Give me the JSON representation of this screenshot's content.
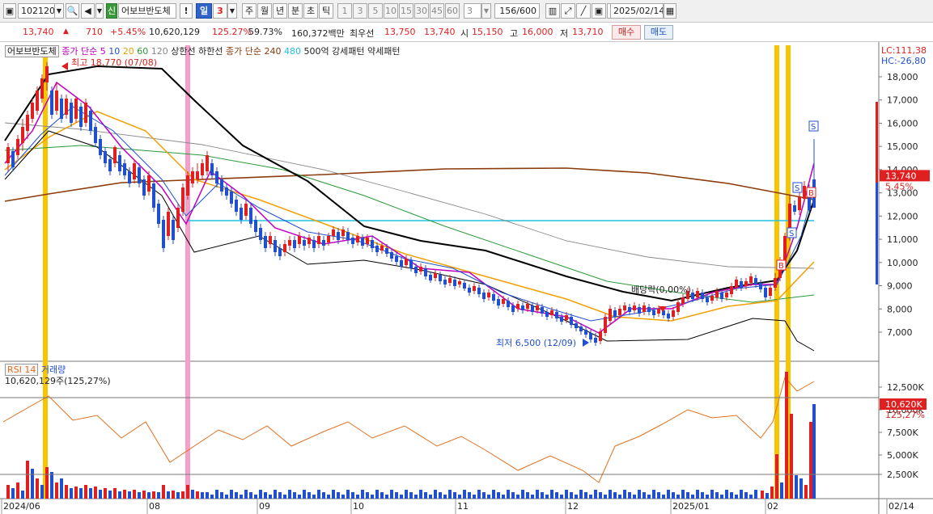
{
  "toolbar": {
    "code": "102120",
    "market_badge": "신",
    "stock_name": "어보브반도체",
    "period_active": "일",
    "period_count": "3",
    "periods": [
      "주",
      "월",
      "년",
      "분",
      "초",
      "틱"
    ],
    "minutes": [
      "1",
      "3",
      "5",
      "10",
      "15",
      "30",
      "45",
      "60"
    ],
    "minute_select": "3",
    "range": "156/600",
    "date": "2025/02/14"
  },
  "quote": {
    "price": "13,740",
    "change": "710",
    "change_rate": "+5.45%",
    "volume": "10,620,129",
    "volume_ratio": "125.27%",
    "turnover": "59.73%",
    "amount": "160,372백만",
    "best_label": "최우선",
    "best_ask": "13,750",
    "best_bid": "13,740",
    "open_label": "시",
    "open": "15,150",
    "high_label": "고",
    "high": "16,000",
    "low_label": "저",
    "low": "13,710",
    "buy_button": "매수",
    "sell_button": "매도"
  },
  "price_legend": {
    "name": "어보브반도체",
    "ma_label": "종가 단순",
    "ma_periods": [
      "5",
      "10",
      "20",
      "60",
      "120"
    ],
    "upper_limit": "상한선",
    "lower_limit": "하한선",
    "ma2_label": "종가 단순",
    "ma2_periods": [
      "240",
      "480"
    ],
    "pattern1": "500억 강세패턴",
    "pattern2": "약세패턴"
  },
  "indicator_legend": {
    "rsi": "RSI 14",
    "volume": "거래량",
    "volume_info": "10,620,129주(125,27%)"
  },
  "chart_data": {
    "type": "candlestick",
    "price_axis": [
      "18,000",
      "17,000",
      "16,000",
      "15,000",
      "14,000",
      "13,000",
      "12,000",
      "11,000",
      "10,000",
      "9,000",
      "8,000",
      "7,000"
    ],
    "price_ylim": [
      6000,
      19000
    ],
    "lc_label": "LC:111,38",
    "hc_label": "HC:-26,80",
    "current_price_label": "13,740",
    "current_rate_label": "5,45%",
    "volume_axis": [
      "12,500K",
      "10,000K",
      "7,500K",
      "5,000K",
      "2,500K"
    ],
    "current_volume_label": "10,620K",
    "current_volume_rate": "125,27%",
    "x_labels": [
      "2024/06",
      "08",
      "09",
      "10",
      "11",
      "12",
      "2025/01",
      "02",
      "02/14"
    ],
    "annotations": {
      "high": "최고 18,770 (07/08)",
      "low": "최저 6,500 (12/09)",
      "ex_div": "배당락(0,00%)"
    },
    "colors": {
      "up": "#e02020",
      "down": "#2050d0",
      "ma5": "#c000c0",
      "ma20": "#f0a000",
      "ma60": "#2a9a3a",
      "ma120": "#888888",
      "ma240": "#8b3a0a",
      "ma480": "#20c0e0",
      "env": "#000000"
    }
  }
}
